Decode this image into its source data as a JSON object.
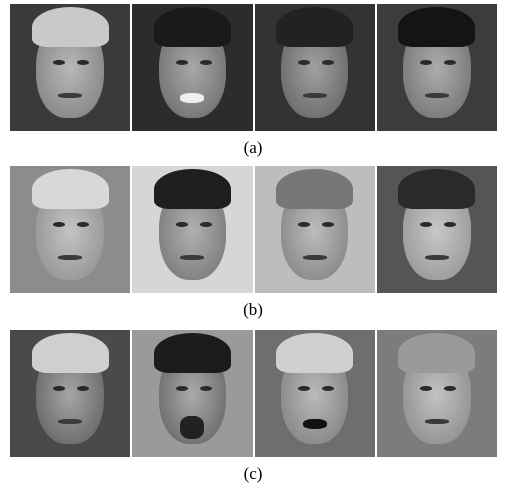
{
  "figure": {
    "rows": [
      {
        "caption": "(a)"
      },
      {
        "caption": "(b)"
      },
      {
        "caption": "(c)"
      }
    ]
  }
}
